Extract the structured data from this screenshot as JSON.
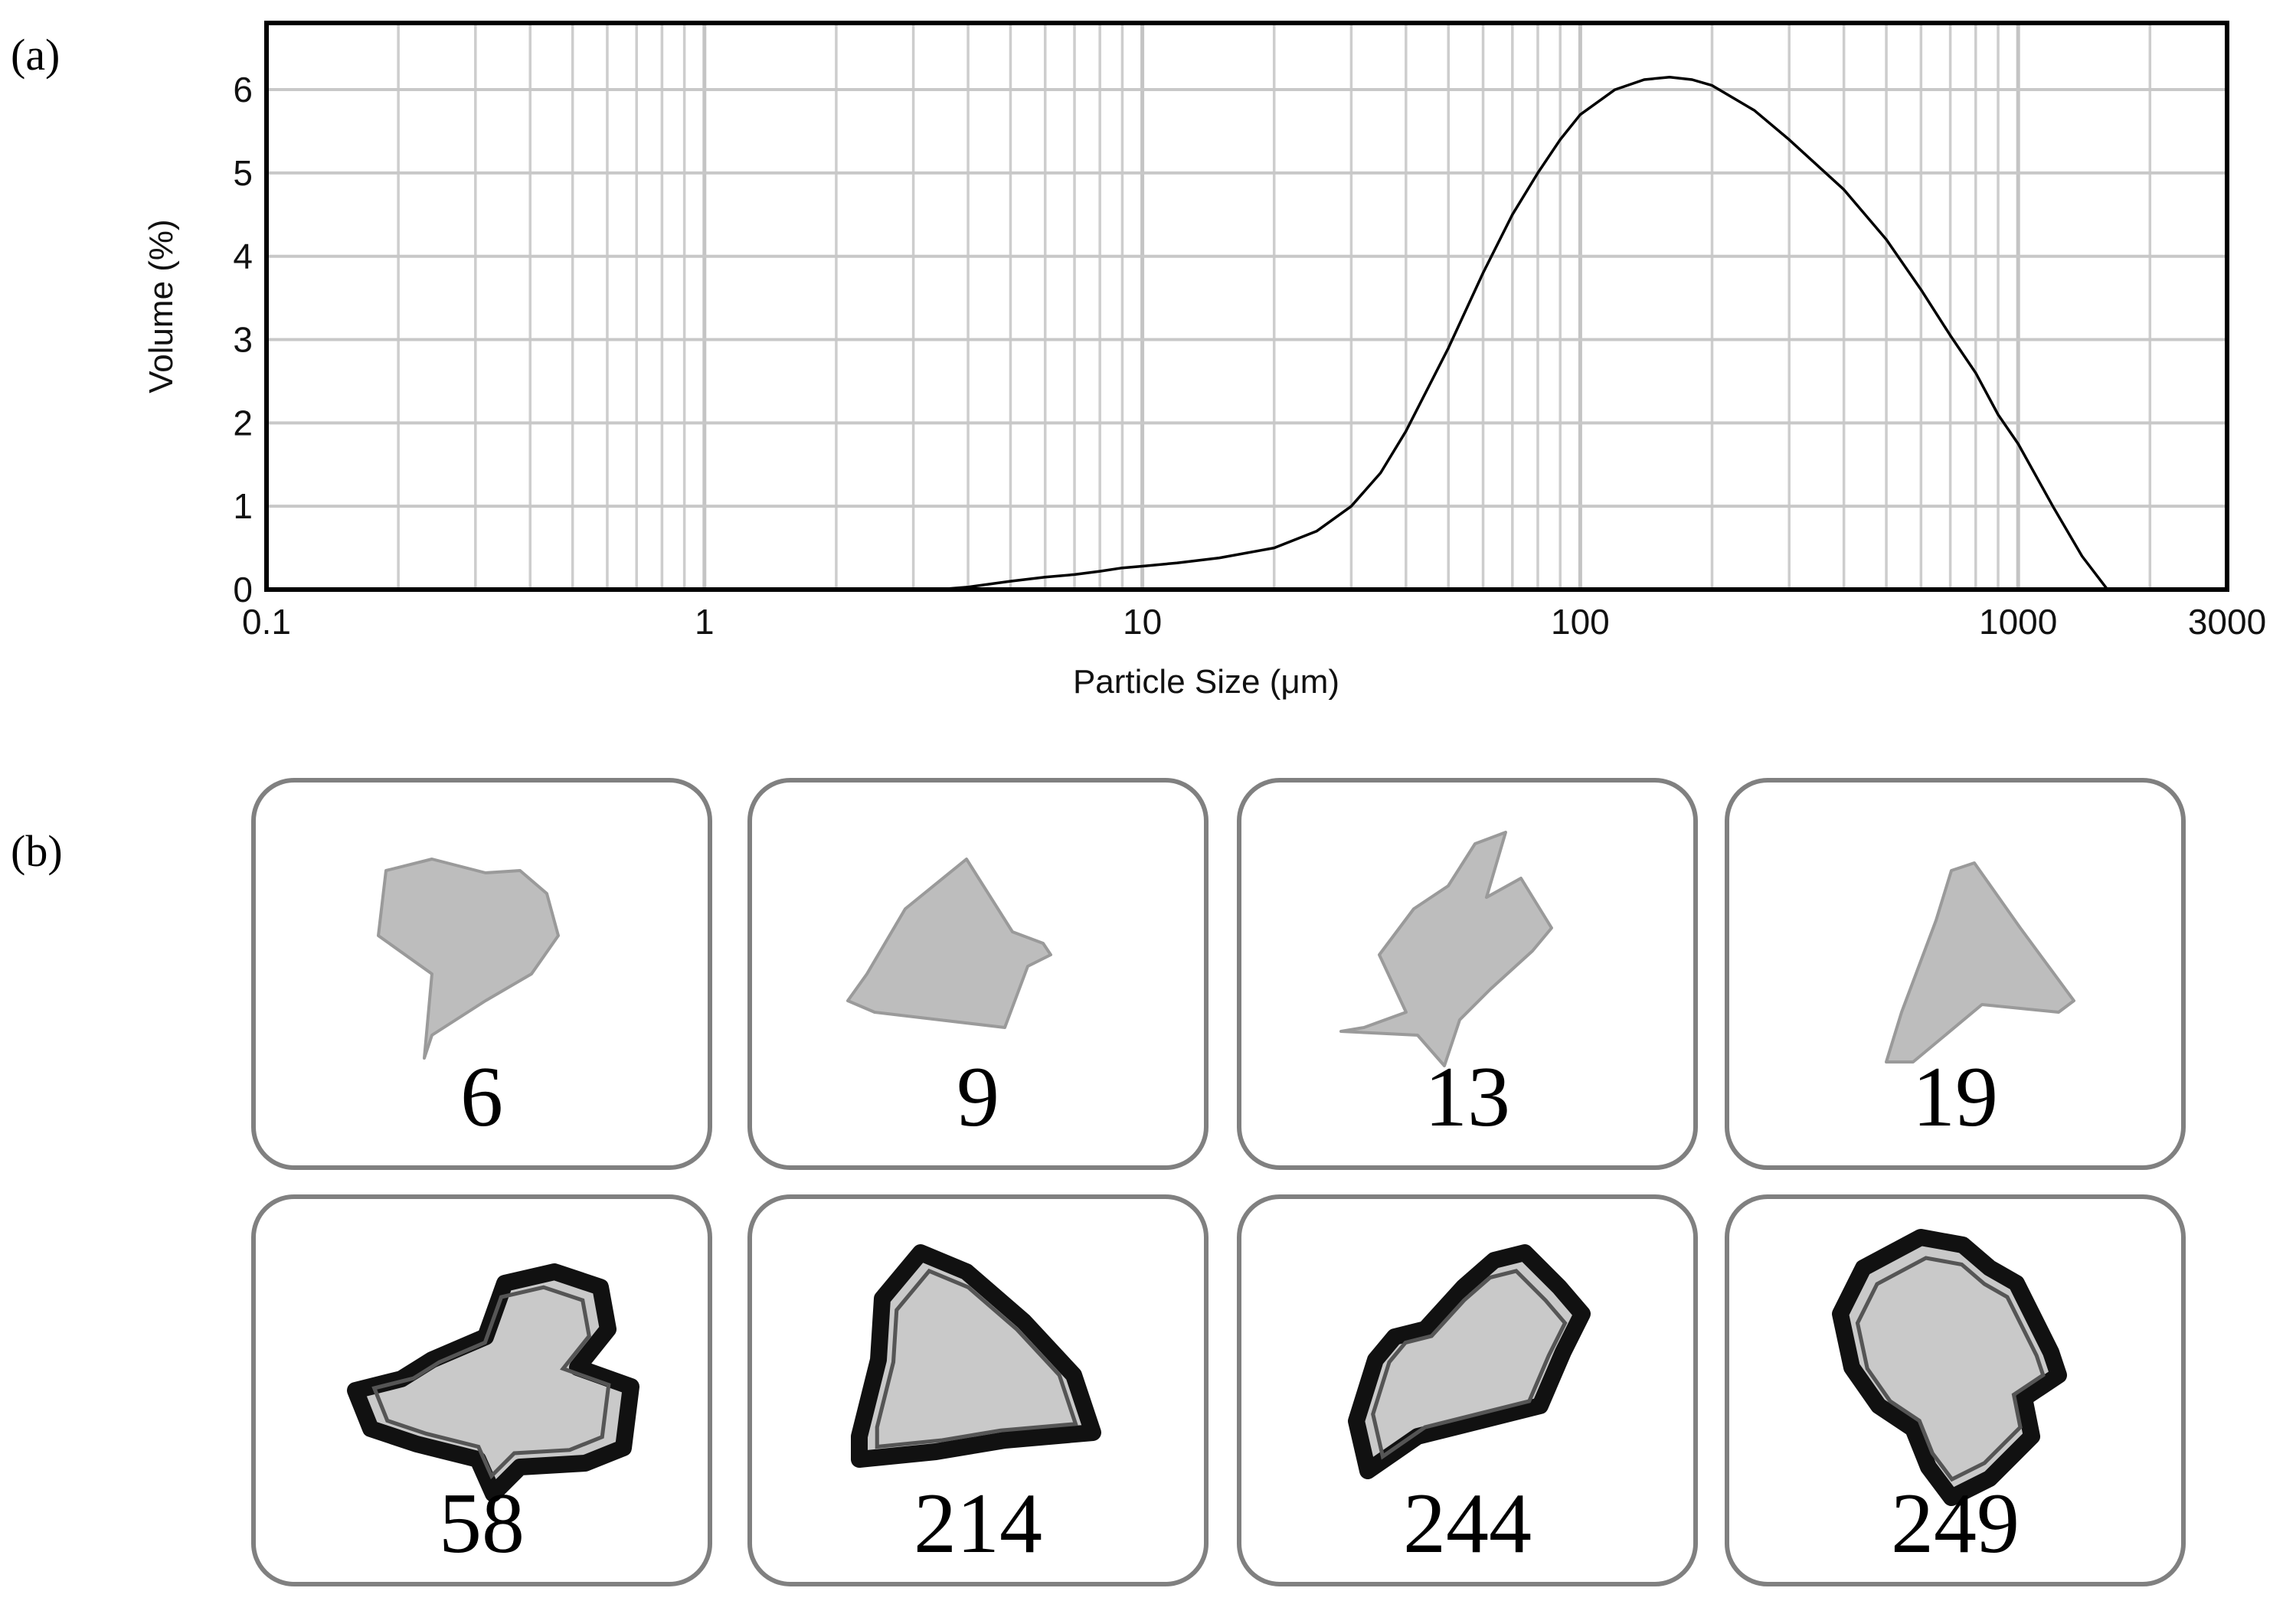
{
  "panel_a": {
    "label": "(a)"
  },
  "panel_b": {
    "label": "(b)"
  },
  "chart_data": {
    "type": "line",
    "xlabel": "Particle Size (μm)",
    "ylabel": "Volume (%)",
    "x_scale": "log",
    "xlim": [
      0.1,
      3000
    ],
    "ylim": [
      0,
      6.8
    ],
    "x_ticks": [
      "0.1",
      "1",
      "10",
      "100",
      "1000",
      "3000"
    ],
    "y_ticks": [
      "0",
      "1",
      "2",
      "3",
      "4",
      "5",
      "6"
    ],
    "grid": true,
    "series": [
      {
        "x": [
          3.4,
          4,
          5,
          6,
          7,
          8,
          9,
          10,
          12,
          15,
          20,
          25,
          30,
          35,
          40,
          50,
          60,
          70,
          80,
          90,
          100,
          120,
          140,
          160,
          180,
          200,
          250,
          300,
          400,
          500,
          600,
          700,
          800,
          900,
          1000,
          1200,
          1400,
          1600
        ],
        "y": [
          0.0,
          0.03,
          0.1,
          0.15,
          0.18,
          0.22,
          0.26,
          0.28,
          0.32,
          0.38,
          0.5,
          0.7,
          1.0,
          1.4,
          1.9,
          2.9,
          3.8,
          4.5,
          5.0,
          5.4,
          5.7,
          6.0,
          6.12,
          6.15,
          6.12,
          6.05,
          5.75,
          5.4,
          4.8,
          4.2,
          3.6,
          3.05,
          2.6,
          2.1,
          1.75,
          1.0,
          0.4,
          0.0
        ]
      }
    ]
  },
  "particles": [
    {
      "value": "6"
    },
    {
      "value": "9"
    },
    {
      "value": "13"
    },
    {
      "value": "19"
    },
    {
      "value": "58"
    },
    {
      "value": "214"
    },
    {
      "value": "244"
    },
    {
      "value": "249"
    }
  ]
}
